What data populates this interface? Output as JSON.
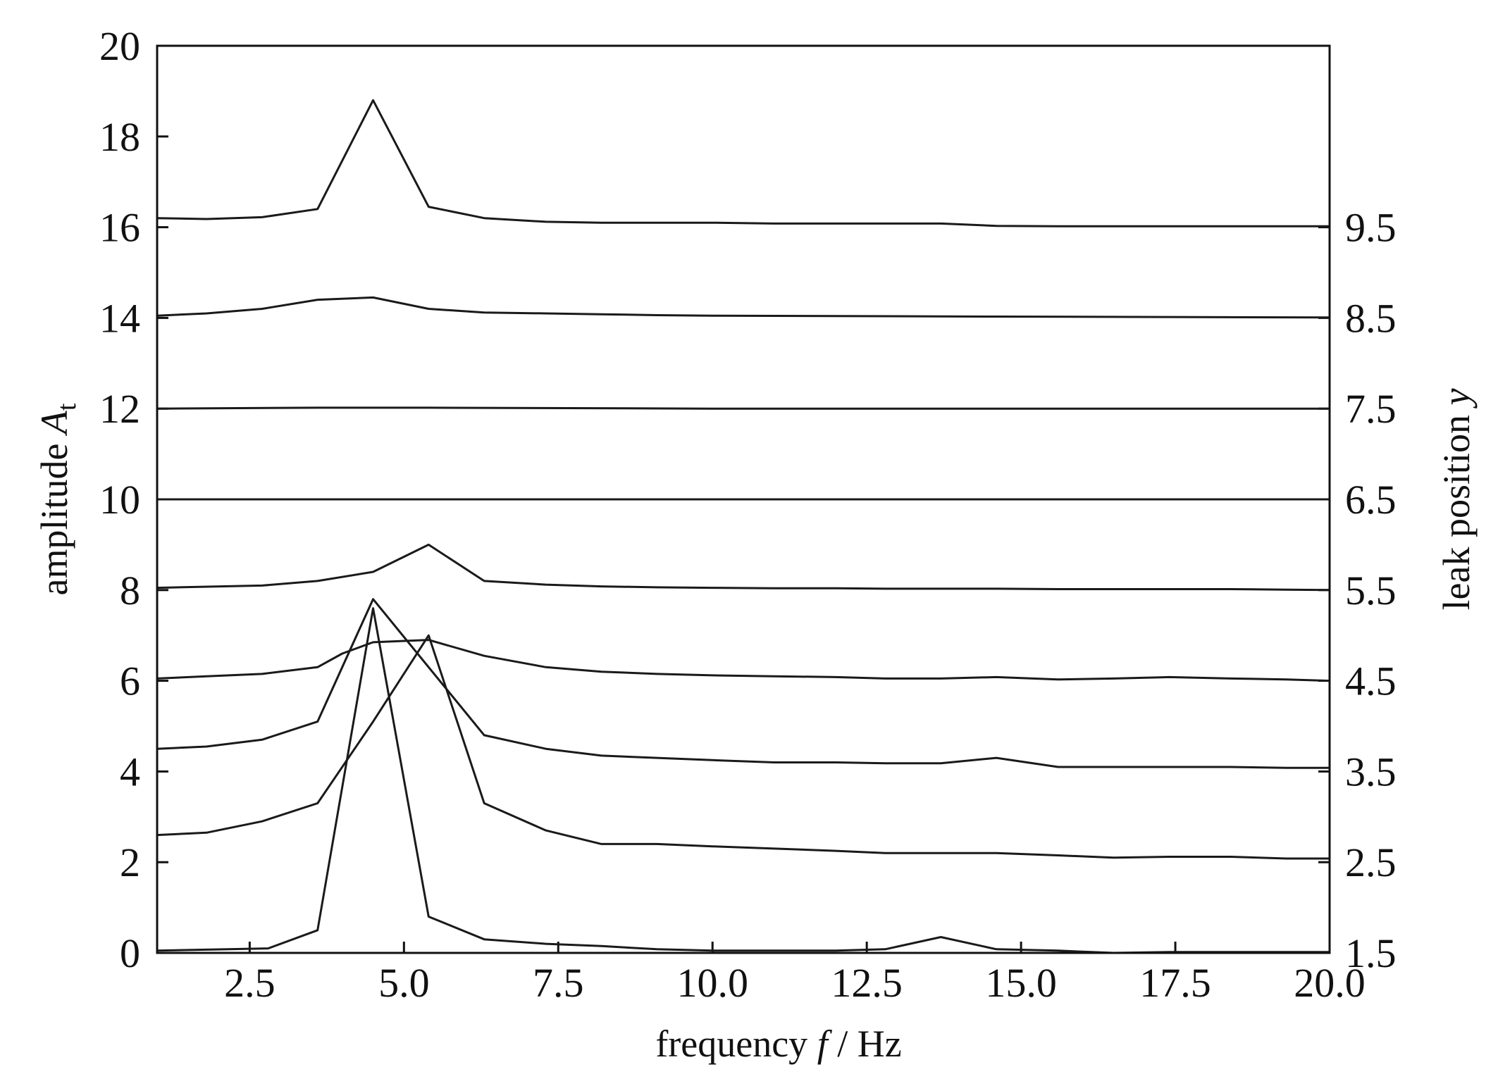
{
  "chart_data": {
    "type": "line",
    "xlabel_prefix": "frequency ",
    "xlabel_var": "f",
    "xlabel_suffix": " / Hz",
    "ylabel_prefix": "amplitude ",
    "ylabel_var": "A",
    "ylabel_sub": "t",
    "y2label_prefix": "leak position ",
    "y2label_var": "y",
    "xlim": [
      1.0,
      20.0
    ],
    "ylim": [
      0,
      20
    ],
    "xticks": [
      2.5,
      5.0,
      7.5,
      10.0,
      12.5,
      15.0,
      17.5,
      20.0
    ],
    "xtick_labels": [
      "2.5",
      "5.0",
      "7.5",
      "10.0",
      "12.5",
      "15.0",
      "17.5",
      "20.0"
    ],
    "yticks": [
      0,
      2,
      4,
      6,
      8,
      10,
      12,
      14,
      16,
      18,
      20
    ],
    "ytick_labels": [
      "0",
      "2",
      "4",
      "6",
      "8",
      "10",
      "12",
      "14",
      "16",
      "18",
      "20"
    ],
    "y2ticks": [
      0,
      2,
      4,
      6,
      8,
      10,
      12,
      14,
      16
    ],
    "y2tick_labels": [
      "1.5",
      "2.5",
      "3.5",
      "4.5",
      "5.5",
      "6.5",
      "7.5",
      "8.5",
      "9.5"
    ],
    "legend": "none",
    "grid": false,
    "series": [
      {
        "x": [
          1.0,
          2.8,
          3.6,
          4.5,
          5.4,
          6.3,
          7.3,
          8.2,
          9.1,
          10.0,
          11.0,
          12.0,
          12.8,
          13.7,
          14.6,
          15.6,
          16.5,
          17.4,
          18.4,
          19.3,
          20.0
        ],
        "y": [
          0.05,
          0.1,
          0.5,
          7.6,
          0.8,
          0.3,
          0.2,
          0.15,
          0.08,
          0.05,
          0.05,
          0.05,
          0.08,
          0.35,
          0.08,
          0.05,
          0.0,
          0.02,
          0.02,
          0.02,
          0.02
        ]
      },
      {
        "x": [
          1.0,
          1.8,
          2.7,
          3.6,
          4.5,
          5.4,
          6.3,
          7.3,
          8.2,
          9.1,
          10.0,
          11.0,
          12.0,
          12.8,
          13.7,
          14.6,
          15.6,
          16.5,
          17.4,
          18.4,
          19.3,
          20.0
        ],
        "y": [
          2.6,
          2.65,
          2.9,
          3.3,
          5.1,
          7.0,
          3.3,
          2.7,
          2.4,
          2.4,
          2.35,
          2.3,
          2.25,
          2.2,
          2.2,
          2.2,
          2.15,
          2.1,
          2.12,
          2.12,
          2.08,
          2.08
        ]
      },
      {
        "x": [
          1.0,
          1.8,
          2.7,
          3.6,
          4.5,
          5.4,
          6.3,
          7.3,
          8.2,
          9.1,
          10.0,
          11.0,
          12.0,
          12.8,
          13.7,
          14.6,
          15.6,
          16.5,
          17.4,
          18.4,
          19.3,
          20.0
        ],
        "y": [
          4.5,
          4.55,
          4.7,
          5.1,
          7.8,
          6.3,
          4.8,
          4.5,
          4.35,
          4.3,
          4.25,
          4.2,
          4.2,
          4.18,
          4.18,
          4.3,
          4.1,
          4.1,
          4.1,
          4.1,
          4.08,
          4.08
        ]
      },
      {
        "x": [
          1.0,
          1.8,
          2.7,
          3.6,
          4.0,
          4.5,
          5.4,
          6.3,
          7.3,
          8.2,
          9.1,
          10.0,
          11.0,
          12.0,
          12.8,
          13.7,
          14.6,
          15.6,
          16.5,
          17.4,
          18.4,
          19.3,
          20.0
        ],
        "y": [
          6.05,
          6.1,
          6.15,
          6.3,
          6.6,
          6.85,
          6.9,
          6.55,
          6.3,
          6.2,
          6.15,
          6.12,
          6.1,
          6.08,
          6.05,
          6.05,
          6.08,
          6.03,
          6.05,
          6.08,
          6.05,
          6.03,
          6.0
        ]
      },
      {
        "x": [
          1.0,
          2.7,
          3.6,
          4.5,
          5.4,
          6.3,
          7.3,
          8.2,
          9.1,
          10.0,
          11.0,
          12.0,
          12.8,
          13.7,
          14.6,
          15.6,
          16.5,
          17.4,
          18.4,
          19.3,
          20.0
        ],
        "y": [
          8.05,
          8.1,
          8.2,
          8.4,
          9.0,
          8.2,
          8.12,
          8.08,
          8.06,
          8.05,
          8.04,
          8.04,
          8.03,
          8.03,
          8.03,
          8.02,
          8.02,
          8.02,
          8.02,
          8.01,
          8.0
        ]
      },
      {
        "x": [
          1.0,
          3.6,
          5.4,
          10.0,
          15.0,
          20.0
        ],
        "y": [
          10.0,
          10.0,
          10.0,
          10.0,
          10.0,
          10.0
        ]
      },
      {
        "x": [
          1.0,
          3.6,
          5.4,
          10.0,
          15.0,
          20.0
        ],
        "y": [
          12.0,
          12.02,
          12.02,
          12.0,
          12.0,
          12.0
        ]
      },
      {
        "x": [
          1.0,
          1.8,
          2.7,
          3.6,
          4.5,
          5.4,
          6.3,
          7.3,
          8.2,
          9.1,
          10.0,
          12.0,
          14.6,
          17.4,
          20.0
        ],
        "y": [
          14.05,
          14.1,
          14.2,
          14.4,
          14.45,
          14.2,
          14.12,
          14.1,
          14.08,
          14.06,
          14.05,
          14.04,
          14.03,
          14.02,
          14.01
        ]
      },
      {
        "x": [
          1.0,
          1.8,
          2.7,
          3.6,
          4.5,
          5.4,
          6.3,
          7.3,
          8.2,
          9.1,
          10.0,
          11.0,
          12.0,
          12.8,
          13.7,
          14.6,
          15.6,
          16.5,
          17.4,
          18.4,
          19.3,
          20.0
        ],
        "y": [
          16.2,
          16.18,
          16.22,
          16.4,
          18.8,
          16.45,
          16.2,
          16.12,
          16.1,
          16.1,
          16.1,
          16.08,
          16.08,
          16.08,
          16.08,
          16.03,
          16.02,
          16.02,
          16.02,
          16.02,
          16.02,
          16.02
        ]
      }
    ]
  }
}
